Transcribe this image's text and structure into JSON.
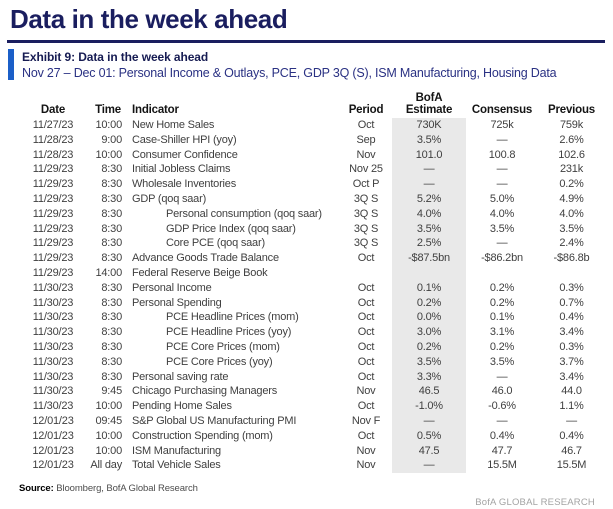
{
  "page_title": "Data in the week ahead",
  "exhibit": {
    "label": "Exhibit 9: Data in the week ahead",
    "subtitle": "Nov 27 – Dec 01: Personal Income & Outlays, PCE, GDP 3Q (S), ISM Manufacturing, Housing Data"
  },
  "table": {
    "headers": {
      "date": "Date",
      "time": "Time",
      "indicator": "Indicator",
      "period": "Period",
      "estimate_top": "BofA",
      "estimate": "Estimate",
      "consensus": "Consensus",
      "previous": "Previous"
    },
    "rows": [
      {
        "date": "11/27/23",
        "time": "10:00",
        "indicator": "New Home Sales",
        "indent": false,
        "period": "Oct",
        "estimate": "730K",
        "consensus": "725k",
        "previous": "759k"
      },
      {
        "date": "11/28/23",
        "time": "9:00",
        "indicator": "Case-Shiller HPI (yoy)",
        "indent": false,
        "period": "Sep",
        "estimate": "3.5%",
        "consensus": "—",
        "previous": "2.6%"
      },
      {
        "date": "11/28/23",
        "time": "10:00",
        "indicator": "Consumer Confidence",
        "indent": false,
        "period": "Nov",
        "estimate": "101.0",
        "consensus": "100.8",
        "previous": "102.6"
      },
      {
        "date": "11/29/23",
        "time": "8:30",
        "indicator": "Initial Jobless Claims",
        "indent": false,
        "period": "Nov 25",
        "estimate": "—",
        "consensus": "—",
        "previous": "231k"
      },
      {
        "date": "11/29/23",
        "time": "8:30",
        "indicator": "Wholesale Inventories",
        "indent": false,
        "period": "Oct P",
        "estimate": "—",
        "consensus": "—",
        "previous": "0.2%"
      },
      {
        "date": "11/29/23",
        "time": "8:30",
        "indicator": "GDP (qoq saar)",
        "indent": false,
        "period": "3Q S",
        "estimate": "5.2%",
        "consensus": "5.0%",
        "previous": "4.9%"
      },
      {
        "date": "11/29/23",
        "time": "8:30",
        "indicator": "Personal consumption (qoq saar)",
        "indent": true,
        "period": "3Q S",
        "estimate": "4.0%",
        "consensus": "4.0%",
        "previous": "4.0%"
      },
      {
        "date": "11/29/23",
        "time": "8:30",
        "indicator": "GDP Price Index (qoq saar)",
        "indent": true,
        "period": "3Q S",
        "estimate": "3.5%",
        "consensus": "3.5%",
        "previous": "3.5%"
      },
      {
        "date": "11/29/23",
        "time": "8:30",
        "indicator": "Core PCE (qoq saar)",
        "indent": true,
        "period": "3Q S",
        "estimate": "2.5%",
        "consensus": "—",
        "previous": "2.4%"
      },
      {
        "date": "11/29/23",
        "time": "8:30",
        "indicator": "Advance Goods Trade Balance",
        "indent": false,
        "period": "Oct",
        "estimate": "-$87.5bn",
        "consensus": "-$86.2bn",
        "previous": "-$86.8b"
      },
      {
        "date": "11/29/23",
        "time": "14:00",
        "indicator": "Federal Reserve Beige Book",
        "indent": false,
        "period": "",
        "estimate": "",
        "consensus": "",
        "previous": ""
      },
      {
        "date": "11/30/23",
        "time": "8:30",
        "indicator": "Personal Income",
        "indent": false,
        "period": "Oct",
        "estimate": "0.1%",
        "consensus": "0.2%",
        "previous": "0.3%"
      },
      {
        "date": "11/30/23",
        "time": "8:30",
        "indicator": "Personal Spending",
        "indent": false,
        "period": "Oct",
        "estimate": "0.2%",
        "consensus": "0.2%",
        "previous": "0.7%"
      },
      {
        "date": "11/30/23",
        "time": "8:30",
        "indicator": "PCE Headline Prices (mom)",
        "indent": true,
        "period": "Oct",
        "estimate": "0.0%",
        "consensus": "0.1%",
        "previous": "0.4%"
      },
      {
        "date": "11/30/23",
        "time": "8:30",
        "indicator": "PCE Headline Prices (yoy)",
        "indent": true,
        "period": "Oct",
        "estimate": "3.0%",
        "consensus": "3.1%",
        "previous": "3.4%"
      },
      {
        "date": "11/30/23",
        "time": "8:30",
        "indicator": "PCE Core Prices (mom)",
        "indent": true,
        "period": "Oct",
        "estimate": "0.2%",
        "consensus": "0.2%",
        "previous": "0.3%"
      },
      {
        "date": "11/30/23",
        "time": "8:30",
        "indicator": "PCE Core Prices (yoy)",
        "indent": true,
        "period": "Oct",
        "estimate": "3.5%",
        "consensus": "3.5%",
        "previous": "3.7%"
      },
      {
        "date": "11/30/23",
        "time": "8:30",
        "indicator": "Personal saving rate",
        "indent": false,
        "period": "Oct",
        "estimate": "3.3%",
        "consensus": "—",
        "previous": "3.4%"
      },
      {
        "date": "11/30/23",
        "time": "9:45",
        "indicator": "Chicago Purchasing Managers",
        "indent": false,
        "period": "Nov",
        "estimate": "46.5",
        "consensus": "46.0",
        "previous": "44.0"
      },
      {
        "date": "11/30/23",
        "time": "10:00",
        "indicator": "Pending Home Sales",
        "indent": false,
        "period": "Oct",
        "estimate": "-1.0%",
        "consensus": "-0.6%",
        "previous": "1.1%"
      },
      {
        "date": "12/01/23",
        "time": "09:45",
        "indicator": "S&P Global US Manufacturing PMI",
        "indent": false,
        "period": "Nov F",
        "estimate": "—",
        "consensus": "—",
        "previous": "—"
      },
      {
        "date": "12/01/23",
        "time": "10:00",
        "indicator": "Construction Spending (mom)",
        "indent": false,
        "period": "Oct",
        "estimate": "0.5%",
        "consensus": "0.4%",
        "previous": "0.4%"
      },
      {
        "date": "12/01/23",
        "time": "10:00",
        "indicator": "ISM Manufacturing",
        "indent": false,
        "period": "Nov",
        "estimate": "47.5",
        "consensus": "47.7",
        "previous": "46.7"
      },
      {
        "date": "12/01/23",
        "time": "All day",
        "indicator": "Total Vehicle Sales",
        "indent": false,
        "period": "Nov",
        "estimate": "—",
        "consensus": "15.5M",
        "previous": "15.5M"
      }
    ]
  },
  "footer": {
    "source_label": "Source:",
    "source_text": "Bloomberg, BofA Global Research",
    "brand": "BofA GLOBAL RESEARCH"
  },
  "colors": {
    "title_navy": "#1a1e5f",
    "exhibit_bar_blue": "#1b5fc8",
    "subtitle_navy": "#2a3183",
    "estimate_column_shade": "#e9e9e9",
    "body_text": "#3f3f3f",
    "brand_gray": "#a3a3a3"
  }
}
